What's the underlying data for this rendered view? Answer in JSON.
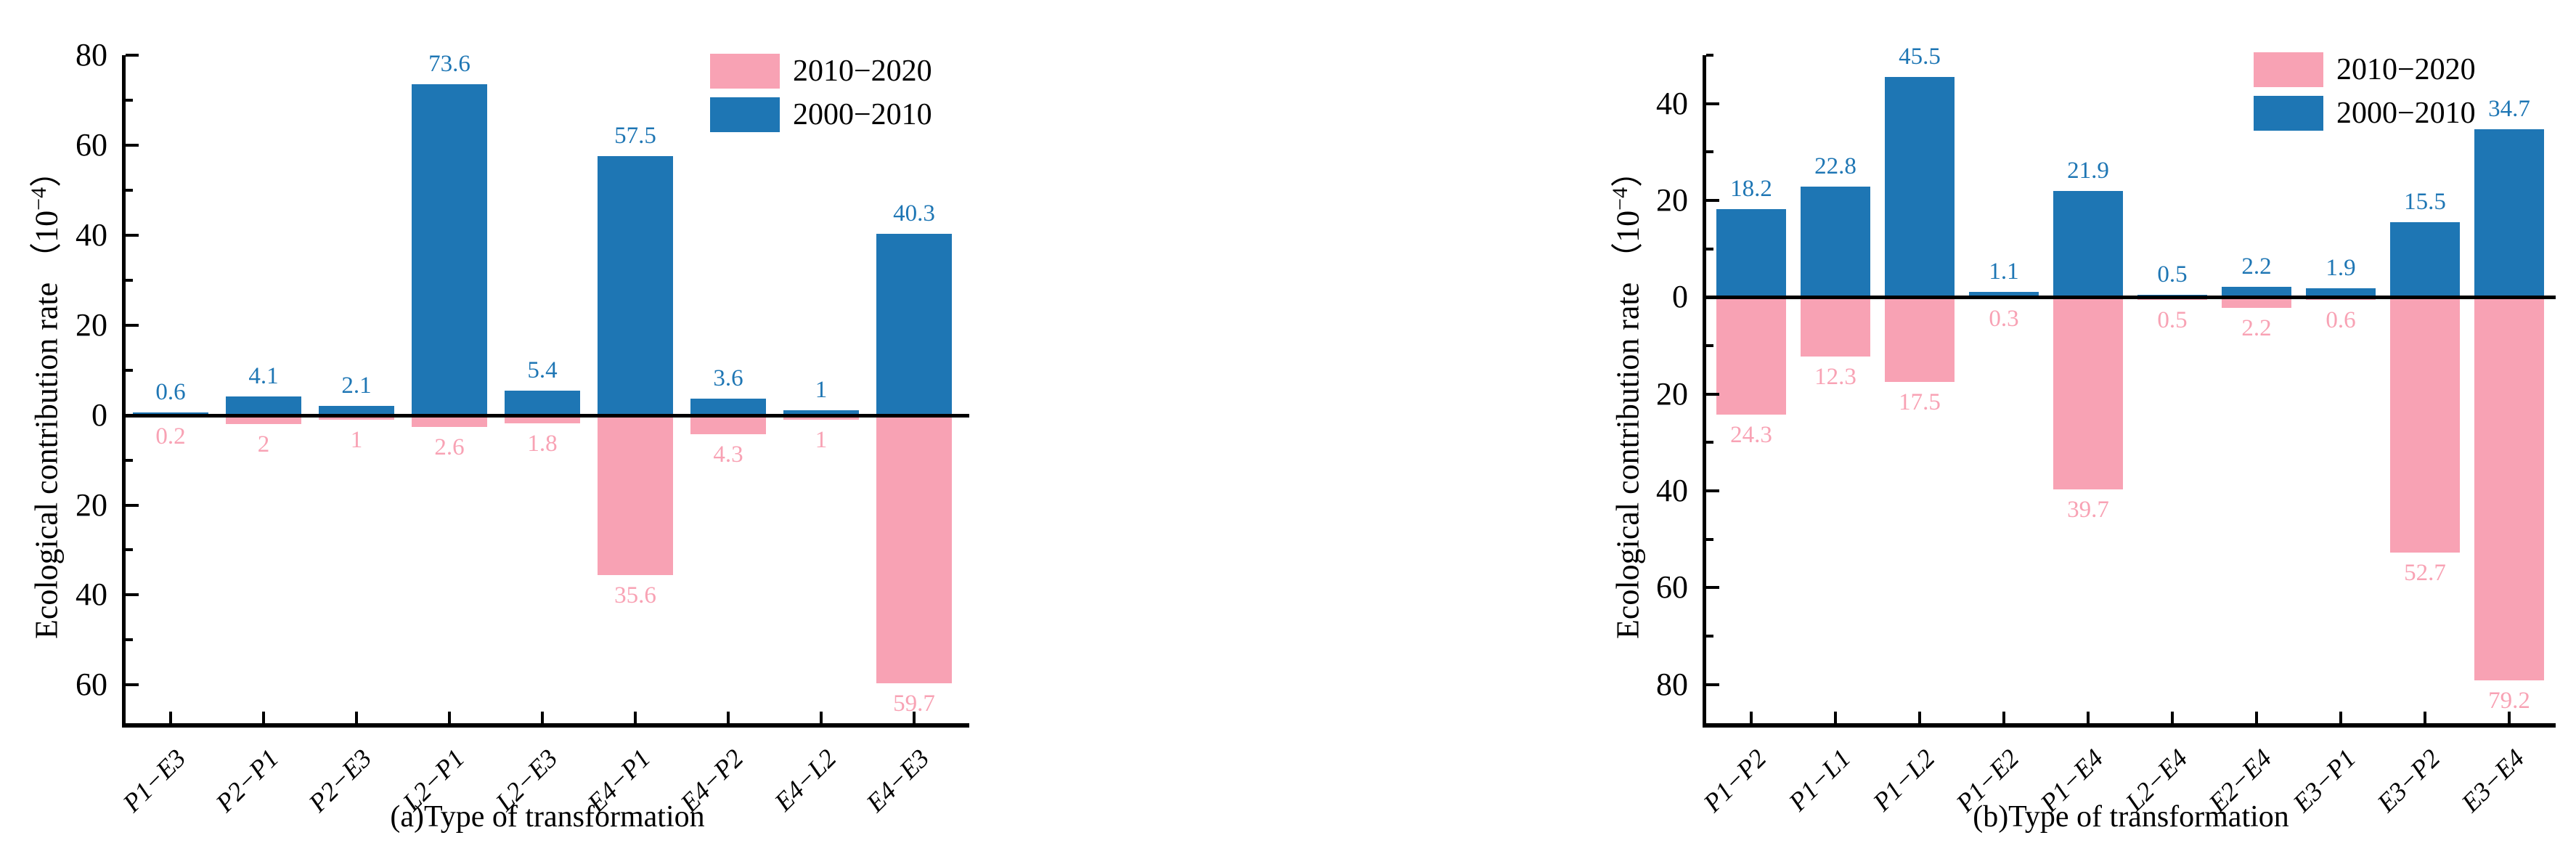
{
  "figure": {
    "background": "#ffffff",
    "legend": {
      "position": "top-right",
      "items": [
        {
          "label": "2010−2020",
          "color": "#f8a2b4"
        },
        {
          "label": "2000−2010",
          "color": "#1e76b4"
        }
      ]
    },
    "ylabel_parts": {
      "prefix": "Ecological contribution rate （10",
      "sup": "−4",
      "suffix": "）"
    },
    "axis_color": "#000000",
    "grid": "off"
  },
  "chart_data": [
    {
      "type": "bar",
      "layout_style": "diverging-mirror",
      "title": "(a)Type of transformation",
      "ylabel": "Ecological contribution rate （10−4）",
      "categories": [
        "P1−E3",
        "P2−P1",
        "P2−E3",
        "L2−P1",
        "L2−E3",
        "E4−P1",
        "E4−P2",
        "E4−L2",
        "E4−E3"
      ],
      "series": [
        {
          "name": "2010−2020",
          "color": "#f8a2b4",
          "below_axis": true,
          "values": [
            0.2,
            2,
            1,
            2.6,
            1.8,
            35.6,
            4.3,
            1,
            59.7
          ],
          "labels": [
            "0.2",
            "2",
            "1",
            "2.6",
            "1.8",
            "35.6",
            "4.3",
            "1",
            "59.7"
          ]
        },
        {
          "name": "2000−2010",
          "color": "#1e76b4",
          "below_axis": false,
          "values": [
            0.6,
            4.1,
            2.1,
            73.6,
            5.4,
            57.5,
            3.6,
            1,
            40.3
          ],
          "labels": [
            "0.6",
            "4.1",
            "2.1",
            "73.6",
            "5.4",
            "57.5",
            "3.6",
            "1",
            "40.3"
          ]
        }
      ],
      "ylim": [
        -68.5,
        80
      ],
      "ytick_values": [
        80,
        60,
        40,
        20,
        0,
        -20,
        -40,
        -60
      ],
      "ytick_labels": [
        "80",
        "60",
        "40",
        "20",
        "0",
        "20",
        "40",
        "60"
      ],
      "legend_position": "top-right"
    },
    {
      "type": "bar",
      "layout_style": "diverging-mirror",
      "title": "(b)Type of transformation",
      "ylabel": "Ecological contribution rate （10−4）",
      "categories": [
        "P1−P2",
        "P1−L1",
        "P1−L2",
        "P1−E2",
        "P1−E4",
        "L2−E4",
        "E2−E4",
        "E3−P1",
        "E3−P2",
        "E3−E4"
      ],
      "series": [
        {
          "name": "2010−2020",
          "color": "#f8a2b4",
          "below_axis": true,
          "values": [
            24.3,
            12.3,
            17.5,
            0.3,
            39.7,
            0.5,
            2.2,
            0.6,
            52.7,
            79.2
          ],
          "labels": [
            "24.3",
            "12.3",
            "17.5",
            "0.3",
            "39.7",
            "0.5",
            "2.2",
            "0.6",
            "52.7",
            "79.2"
          ]
        },
        {
          "name": "2000−2010",
          "color": "#1e76b4",
          "below_axis": false,
          "values": [
            18.2,
            22.8,
            45.5,
            1.1,
            21.9,
            0.5,
            2.2,
            1.9,
            15.5,
            34.7
          ],
          "labels": [
            "18.2",
            "22.8",
            "45.5",
            "1.1",
            "21.9",
            "0.5",
            "2.2",
            "1.9",
            "15.5",
            "34.7"
          ]
        }
      ],
      "ylim": [
        -88,
        50
      ],
      "ytick_values": [
        40,
        20,
        0,
        -20,
        -40,
        -60,
        -80
      ],
      "ytick_labels": [
        "40",
        "20",
        "0",
        "20",
        "40",
        "60",
        "80"
      ],
      "legend_position": "top-right"
    }
  ]
}
